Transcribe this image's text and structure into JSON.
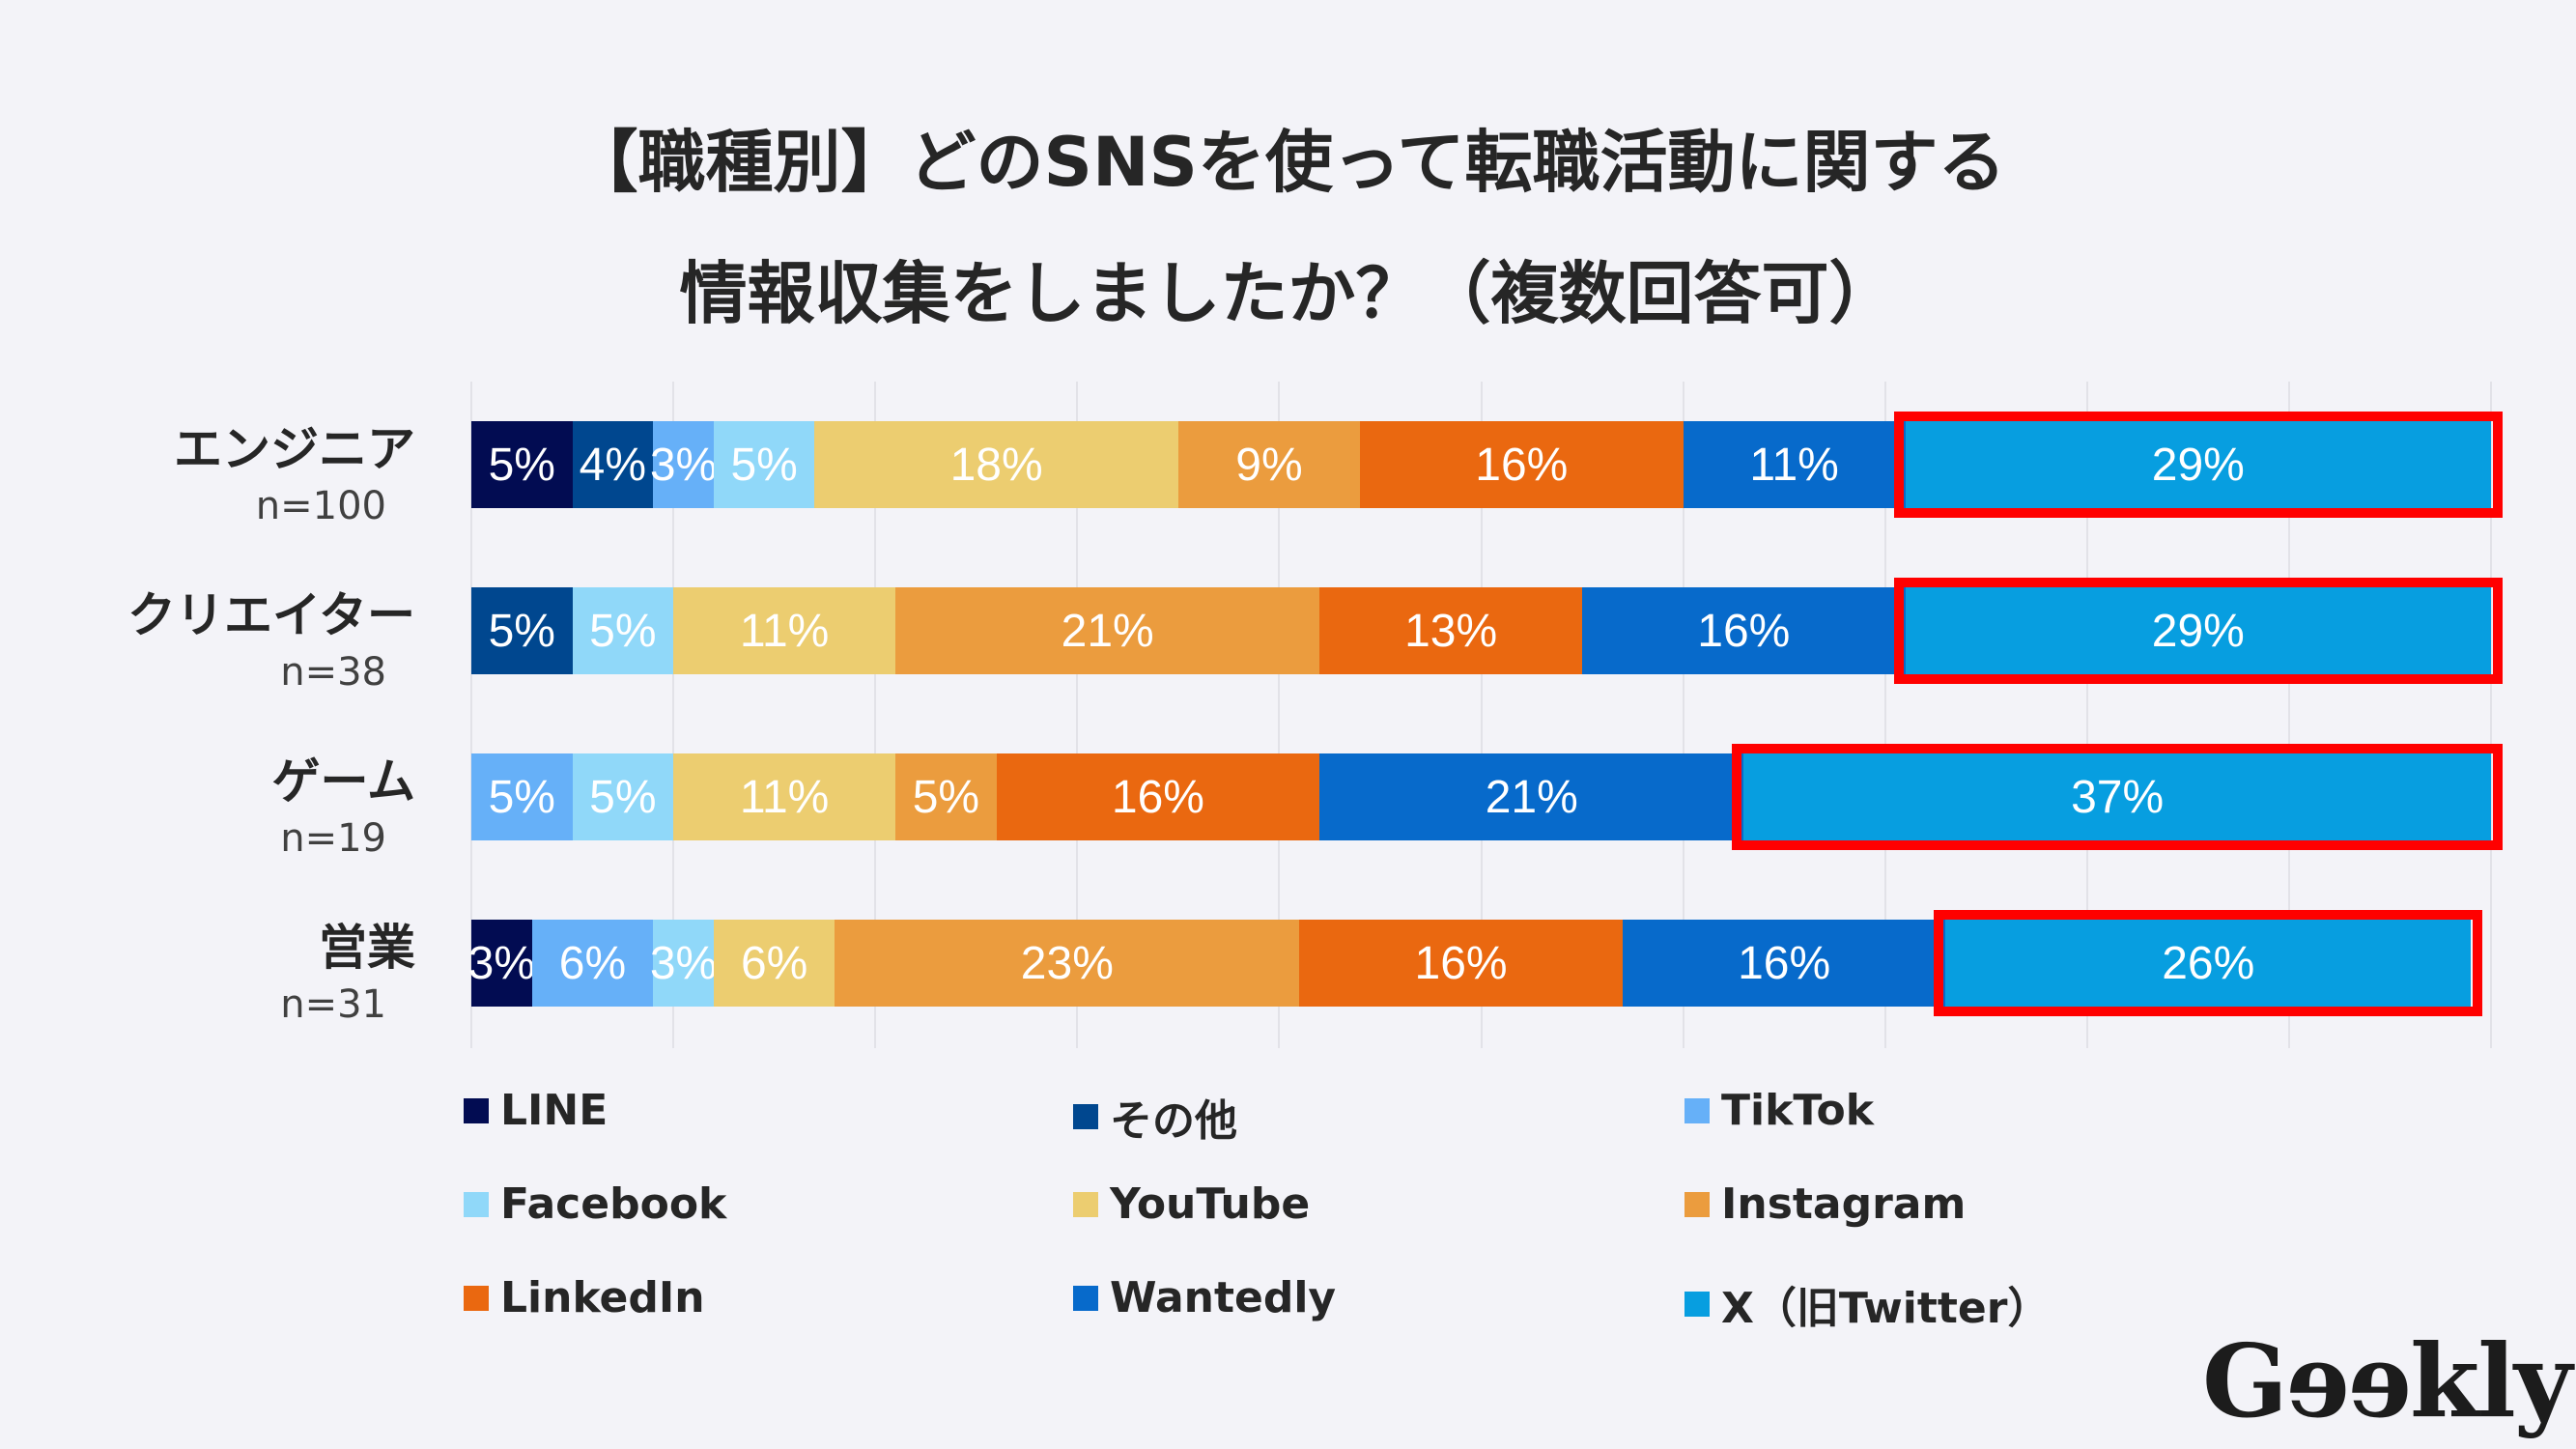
{
  "chart_data": {
    "type": "bar",
    "orientation": "horizontal-stacked",
    "title": [
      "【職種別】どのSNSを使って転職活動に関する",
      "情報収集をしましたか？（複数回答可）"
    ],
    "categories": [
      {
        "label": "エンジニア",
        "n": "n=100"
      },
      {
        "label": "クリエイター",
        "n": "n=38"
      },
      {
        "label": "ゲーム",
        "n": "n=19"
      },
      {
        "label": "営業",
        "n": "n=31"
      }
    ],
    "series": [
      {
        "name": "LINE",
        "color": "#020c52",
        "values": [
          5,
          0,
          0,
          3
        ]
      },
      {
        "name": "その他",
        "color": "#00478f",
        "values": [
          4,
          5,
          0,
          0
        ]
      },
      {
        "name": "TikTok",
        "color": "#66b0f8",
        "values": [
          3,
          0,
          5,
          6
        ]
      },
      {
        "name": "Facebook",
        "color": "#90d8f9",
        "values": [
          5,
          5,
          5,
          3
        ]
      },
      {
        "name": "YouTube",
        "color": "#eccd70",
        "values": [
          18,
          11,
          11,
          6
        ]
      },
      {
        "name": "Instagram",
        "color": "#eb9c3e",
        "values": [
          9,
          21,
          5,
          23
        ]
      },
      {
        "name": "LinkedIn",
        "color": "#ea6810",
        "values": [
          16,
          13,
          16,
          16
        ]
      },
      {
        "name": "Wantedly",
        "color": "#076acb",
        "values": [
          11,
          16,
          21,
          16
        ]
      },
      {
        "name": "X（旧Twitter）",
        "color": "#079ee0",
        "values": [
          29,
          29,
          37,
          26
        ]
      }
    ],
    "highlighted_series": "X（旧Twitter）",
    "highlight_color": "#ff0000",
    "value_suffix": "%",
    "xlim": [
      0,
      100
    ],
    "grid": true,
    "legend_placement": "bottom"
  },
  "logo": "Geekly"
}
